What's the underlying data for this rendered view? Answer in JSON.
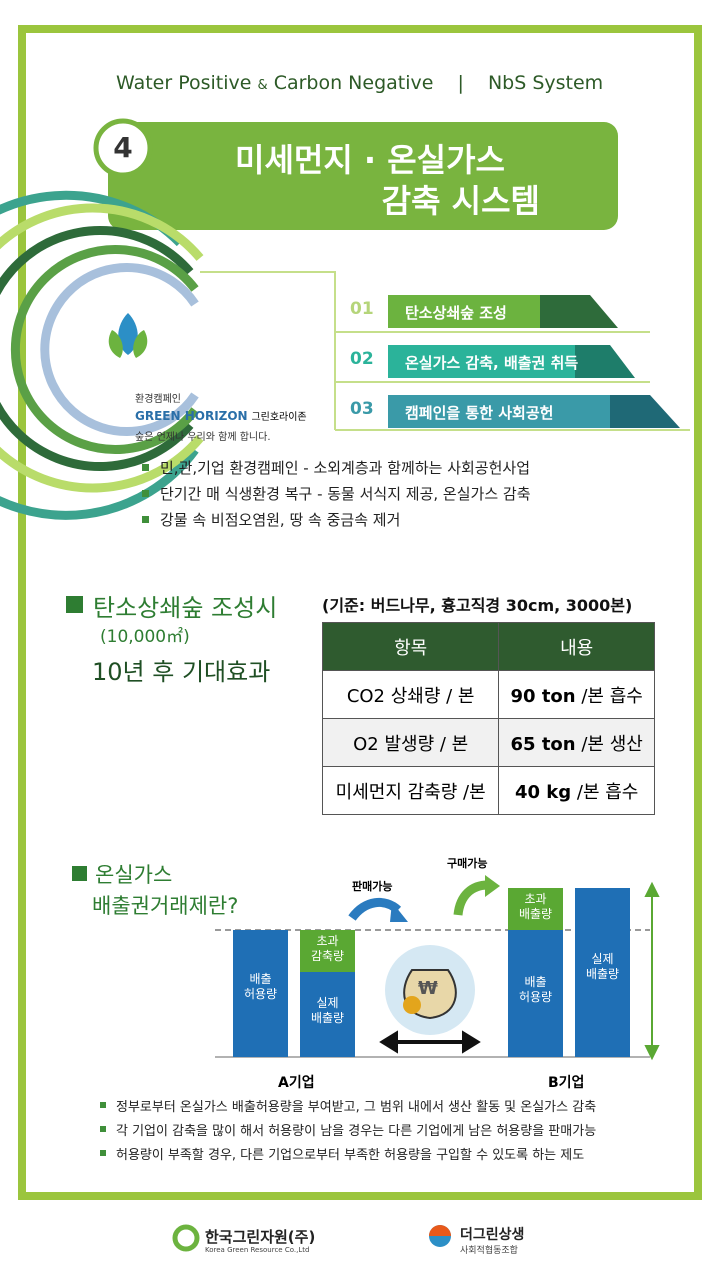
{
  "header": {
    "left1": "Water Positive",
    "amp": "&",
    "left2": "Carbon Negative",
    "separator": "|",
    "right": "NbS System"
  },
  "section1": {
    "number": "4",
    "title_line1": "미세먼지 · 온실가스",
    "title_line2": "감축 시스템",
    "campaign": {
      "label": "환경캠페인",
      "brand": "GREEN HORIZON",
      "brand_ko": "그린호라이존",
      "slogan": "숲은 언제나 우리와 함께 합니다."
    },
    "steps": [
      {
        "num": "01",
        "text": "탄소상쇄숲 조성"
      },
      {
        "num": "02",
        "text": "온실가스 감축, 배출권 취득"
      },
      {
        "num": "03",
        "text": "캠페인을 통한 사회공헌"
      }
    ],
    "bullets": [
      "민,관,기업 환경캠페인 - 소외계층과 함께하는 사회공헌사업",
      "단기간 매 식생환경 복구 - 동물 서식지 제공, 온실가스 감축",
      "강물 속 비점오염원, 땅 속 중금속 제거"
    ]
  },
  "section2": {
    "title": "탄소상쇄숲  조성시",
    "area": "(10,000㎡)",
    "subtitle": "10년 후 기대효과",
    "basis": "(기준: 버드나무, 흉고직경 30cm, 3000본)",
    "table": {
      "header": [
        "항목",
        "내용"
      ],
      "rows": [
        {
          "item": "CO2 상쇄량 / 본",
          "amount": "90 ton",
          "unit": "/본 흡수"
        },
        {
          "item": "O2 발생량 / 본",
          "amount": "65 ton",
          "unit": "/본 생산"
        },
        {
          "item": "미세먼지 감축량 /본",
          "amount": "40 kg",
          "unit": "/본 흡수"
        }
      ]
    }
  },
  "section3": {
    "title_line1": "온실가스",
    "title_line2": "배출권거래제란?",
    "diagram": {
      "sell": "판매가능",
      "buy": "구매가능",
      "currency": "₩",
      "a_allowance": "배출\n허용량",
      "a_surplus": "초과\n감축량",
      "a_actual": "실제\n배출량",
      "b_excess": "초과\n배출량",
      "b_allowance": "배출\n허용량",
      "b_actual": "실제\n배출량",
      "company_a": "A기업",
      "company_b": "B기업"
    },
    "bullets": [
      "정부로부터 온실가스 배출허용량을 부여받고, 그 범위 내에서 생산 활동 및 온실가스 감축",
      "각 기업이 감축을 많이 해서 허용량이 남을 경우는 다른 기업에게 남은 허용량을 판매가능",
      "허용량이 부족할 경우, 다른 기업으로부터 부족한 허용량을 구입할 수 있도록 하는 제도"
    ]
  },
  "footer": {
    "org1": "한국그린자원(주)",
    "org1_en": "Korea Green Resource Co.,Ltd",
    "org2": "더그린상생",
    "org2_sub": "사회적협동조합"
  }
}
